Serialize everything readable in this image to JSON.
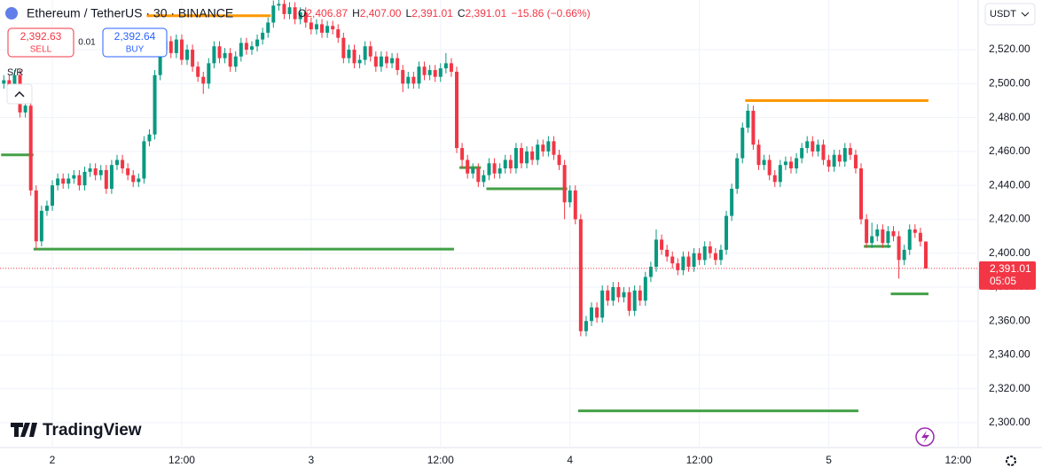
{
  "chart_data": {
    "type": "candlestick",
    "title": "Ethereum / TetherUS · 30 · BINANCE",
    "ohlc": [
      {
        "label": "O",
        "value": "2,406.87"
      },
      {
        "label": "H",
        "value": "2,407.00"
      },
      {
        "label": "L",
        "value": "2,391.01"
      },
      {
        "label": "C",
        "value": "2,391.01"
      }
    ],
    "change": "−15.86 (−0.66%)",
    "trade": {
      "sell_price": "2,392.63",
      "sell": "SELL",
      "spread": "0.01",
      "buy_price": "2,392.64",
      "buy": "BUY"
    },
    "indicator": "S/R",
    "currency": "USDT",
    "last_label": {
      "price": "2,391.01",
      "countdown": "05:05"
    },
    "brand": "TradingView",
    "up_color": "#089981",
    "down_color": "#f23645",
    "open": [
      2500,
      2502,
      2498,
      2505,
      2483,
      2487,
      2437,
      2407,
      2425,
      2428,
      2440,
      2444,
      2441,
      2444,
      2446,
      2440,
      2448,
      2450,
      2446,
      2449,
      2438,
      2452,
      2455,
      2450,
      2446,
      2442,
      2444,
      2466,
      2470,
      2505,
      2520,
      2525,
      2518,
      2526,
      2514,
      2520,
      2510,
      2504,
      2500,
      2512,
      2522,
      2515,
      2518,
      2510,
      2516,
      2524,
      2520,
      2522,
      2526,
      2530,
      2536,
      2546,
      2547,
      2541,
      2545,
      2538,
      2542,
      2536,
      2532,
      2535,
      2530,
      2534,
      2532,
      2527,
      2515,
      2520,
      2512,
      2514,
      2522,
      2516,
      2510,
      2516,
      2512,
      2515,
      2508,
      2500,
      2504,
      2500,
      2510,
      2505,
      2508,
      2504,
      2509,
      2512,
      2507,
      2462,
      2455,
      2447,
      2450,
      2442,
      2446,
      2453,
      2447,
      2450,
      2455,
      2450,
      2462,
      2453,
      2460,
      2455,
      2464,
      2460,
      2466,
      2458,
      2452,
      2430,
      2437,
      2420,
      2354,
      2360,
      2368,
      2362,
      2378,
      2372,
      2380,
      2374,
      2377,
      2366,
      2378,
      2372,
      2386,
      2392,
      2408,
      2402,
      2398,
      2394,
      2390,
      2398,
      2392,
      2400,
      2396,
      2404,
      2400,
      2396,
      2402,
      2422,
      2438,
      2456,
      2474,
      2484,
      2464,
      2452,
      2455,
      2446,
      2442,
      2452,
      2454,
      2450,
      2456,
      2462,
      2466,
      2460,
      2464,
      2455,
      2451,
      2458,
      2454,
      2462,
      2458,
      2450,
      2420,
      2406,
      2410,
      2414,
      2406,
      2413,
      2410,
      2396,
      2402,
      2414,
      2412,
      2406.87
    ],
    "high": [
      2505,
      2505,
      2508,
      2508,
      2490,
      2490,
      2440,
      2428,
      2431,
      2443,
      2447,
      2447,
      2447,
      2449,
      2449,
      2451,
      2453,
      2453,
      2452,
      2452,
      2455,
      2458,
      2458,
      2453,
      2449,
      2447,
      2469,
      2473,
      2508,
      2523,
      2528,
      2528,
      2529,
      2529,
      2523,
      2523,
      2513,
      2507,
      2515,
      2525,
      2525,
      2521,
      2521,
      2519,
      2527,
      2527,
      2525,
      2529,
      2533,
      2539,
      2549,
      2550,
      2550,
      2548,
      2548,
      2545,
      2545,
      2539,
      2538,
      2538,
      2537,
      2537,
      2535,
      2530,
      2523,
      2523,
      2517,
      2525,
      2525,
      2519,
      2519,
      2519,
      2518,
      2518,
      2511,
      2507,
      2507,
      2513,
      2513,
      2511,
      2511,
      2512,
      2518,
      2515,
      2510,
      2465,
      2458,
      2453,
      2453,
      2449,
      2456,
      2456,
      2453,
      2458,
      2458,
      2465,
      2465,
      2463,
      2463,
      2467,
      2467,
      2469,
      2469,
      2461,
      2455,
      2440,
      2440,
      2423,
      2363,
      2371,
      2371,
      2381,
      2381,
      2383,
      2383,
      2380,
      2380,
      2381,
      2381,
      2389,
      2395,
      2414,
      2411,
      2405,
      2401,
      2397,
      2401,
      2401,
      2403,
      2403,
      2407,
      2407,
      2403,
      2405,
      2425,
      2441,
      2459,
      2477,
      2488,
      2487,
      2467,
      2458,
      2458,
      2449,
      2455,
      2457,
      2457,
      2459,
      2465,
      2469,
      2469,
      2467,
      2467,
      2458,
      2461,
      2461,
      2465,
      2465,
      2461,
      2453,
      2423,
      2418,
      2417,
      2417,
      2416,
      2416,
      2413,
      2405,
      2417,
      2417,
      2415,
      2407
    ],
    "low": [
      2497,
      2495,
      2495,
      2480,
      2480,
      2434,
      2402,
      2404,
      2422,
      2425,
      2437,
      2438,
      2438,
      2441,
      2437,
      2437,
      2445,
      2443,
      2443,
      2435,
      2435,
      2449,
      2447,
      2443,
      2439,
      2439,
      2441,
      2463,
      2467,
      2502,
      2517,
      2515,
      2515,
      2511,
      2511,
      2507,
      2501,
      2494,
      2497,
      2509,
      2512,
      2512,
      2507,
      2507,
      2513,
      2517,
      2517,
      2519,
      2523,
      2527,
      2533,
      2543,
      2538,
      2538,
      2535,
      2535,
      2533,
      2529,
      2529,
      2527,
      2527,
      2529,
      2524,
      2512,
      2512,
      2509,
      2509,
      2511,
      2513,
      2507,
      2507,
      2509,
      2509,
      2505,
      2495,
      2497,
      2497,
      2497,
      2502,
      2502,
      2501,
      2501,
      2506,
      2504,
      2459,
      2450,
      2444,
      2444,
      2439,
      2439,
      2443,
      2444,
      2444,
      2447,
      2447,
      2447,
      2450,
      2450,
      2452,
      2452,
      2457,
      2457,
      2455,
      2449,
      2420,
      2427,
      2417,
      2351,
      2351,
      2357,
      2359,
      2359,
      2369,
      2369,
      2371,
      2371,
      2363,
      2363,
      2369,
      2369,
      2383,
      2389,
      2399,
      2395,
      2391,
      2387,
      2387,
      2389,
      2389,
      2393,
      2393,
      2397,
      2393,
      2393,
      2399,
      2419,
      2435,
      2453,
      2471,
      2461,
      2449,
      2449,
      2443,
      2439,
      2439,
      2449,
      2447,
      2447,
      2453,
      2459,
      2457,
      2457,
      2452,
      2448,
      2448,
      2451,
      2451,
      2455,
      2447,
      2417,
      2403,
      2403,
      2407,
      2403,
      2403,
      2407,
      2385,
      2393,
      2399,
      2409,
      2404,
      2391.01
    ],
    "close": [
      2502,
      2498,
      2505,
      2483,
      2487,
      2437,
      2407,
      2425,
      2428,
      2440,
      2444,
      2441,
      2444,
      2446,
      2440,
      2448,
      2450,
      2446,
      2449,
      2438,
      2452,
      2455,
      2450,
      2446,
      2442,
      2444,
      2466,
      2470,
      2505,
      2520,
      2525,
      2518,
      2526,
      2514,
      2520,
      2510,
      2504,
      2500,
      2512,
      2522,
      2515,
      2518,
      2510,
      2516,
      2524,
      2520,
      2522,
      2526,
      2530,
      2536,
      2546,
      2547,
      2541,
      2545,
      2538,
      2542,
      2536,
      2532,
      2535,
      2530,
      2534,
      2532,
      2527,
      2515,
      2520,
      2512,
      2514,
      2522,
      2516,
      2510,
      2516,
      2512,
      2515,
      2508,
      2500,
      2504,
      2500,
      2510,
      2505,
      2508,
      2504,
      2509,
      2512,
      2507,
      2462,
      2455,
      2447,
      2450,
      2442,
      2446,
      2453,
      2447,
      2450,
      2455,
      2450,
      2462,
      2453,
      2460,
      2455,
      2464,
      2460,
      2466,
      2458,
      2452,
      2430,
      2437,
      2420,
      2354,
      2360,
      2368,
      2362,
      2378,
      2372,
      2380,
      2374,
      2377,
      2366,
      2378,
      2372,
      2386,
      2392,
      2408,
      2402,
      2398,
      2394,
      2390,
      2398,
      2392,
      2400,
      2396,
      2404,
      2400,
      2396,
      2402,
      2422,
      2438,
      2456,
      2474,
      2484,
      2464,
      2452,
      2455,
      2446,
      2442,
      2452,
      2454,
      2450,
      2456,
      2462,
      2466,
      2460,
      2464,
      2455,
      2451,
      2458,
      2454,
      2462,
      2458,
      2450,
      2420,
      2406,
      2410,
      2414,
      2406,
      2413,
      2410,
      2396,
      2402,
      2414,
      2412,
      2406.87,
      2391.01
    ],
    "levels": [
      {
        "value": 2458,
        "start": 0,
        "end": 5,
        "color": "#43a047"
      },
      {
        "value": 2540,
        "start": 27,
        "end": 49,
        "color": "#ff9800"
      },
      {
        "value": 2402.4,
        "start": 6,
        "end": 83,
        "color": "#43a047"
      },
      {
        "value": 2450.5,
        "start": 85,
        "end": 88,
        "color": "#43a047"
      },
      {
        "value": 2438,
        "start": 90,
        "end": 104,
        "color": "#43a047"
      },
      {
        "value": 2307,
        "start": 107,
        "end": 158,
        "color": "#43a047"
      },
      {
        "value": 2490,
        "start": 138,
        "end": 171,
        "color": "#ff9800"
      },
      {
        "value": 2404,
        "start": 160,
        "end": 164,
        "color": "#43a047"
      },
      {
        "value": 2376,
        "start": 165,
        "end": 171,
        "color": "#43a047"
      }
    ],
    "ylim": [
      2285.4,
      2549.3
    ],
    "yticks": [
      {
        "value": 2300,
        "label": "2,300.00"
      },
      {
        "value": 2320,
        "label": "2,320.00"
      },
      {
        "value": 2340,
        "label": "2,340.00"
      },
      {
        "value": 2360,
        "label": "2,360.00"
      },
      {
        "value": 2380,
        "label": "2,380.00"
      },
      {
        "value": 2400,
        "label": "2,400.00"
      },
      {
        "value": 2420,
        "label": "2,420.00"
      },
      {
        "value": 2440,
        "label": "2,440.00"
      },
      {
        "value": 2460,
        "label": "2,460.00"
      },
      {
        "value": 2480,
        "label": "2,480.00"
      },
      {
        "value": 2500,
        "label": "2,500.00"
      },
      {
        "value": 2520,
        "label": "2,520.00"
      }
    ],
    "xticks": [
      {
        "value": 9,
        "label": "2"
      },
      {
        "value": 33,
        "label": "12:00"
      },
      {
        "value": 57,
        "label": "3"
      },
      {
        "value": 81,
        "label": "12:00"
      },
      {
        "value": 105,
        "label": "4"
      },
      {
        "value": 129,
        "label": "12:00"
      },
      {
        "value": 153,
        "label": "5"
      },
      {
        "value": 177,
        "label": "12:00"
      }
    ],
    "grid": true
  }
}
